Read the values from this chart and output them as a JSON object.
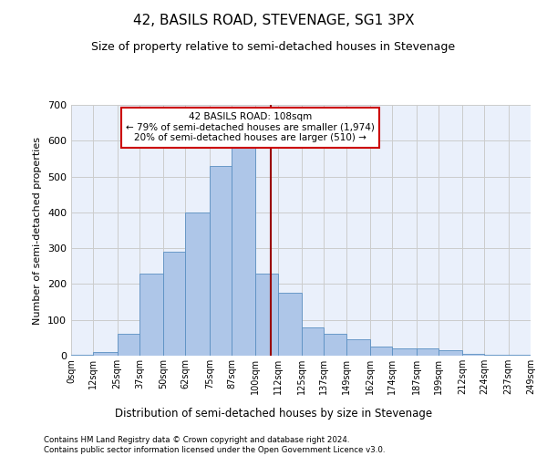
{
  "title": "42, BASILS ROAD, STEVENAGE, SG1 3PX",
  "subtitle": "Size of property relative to semi-detached houses in Stevenage",
  "xlabel": "Distribution of semi-detached houses by size in Stevenage",
  "ylabel": "Number of semi-detached properties",
  "footnote1": "Contains HM Land Registry data © Crown copyright and database right 2024.",
  "footnote2": "Contains public sector information licensed under the Open Government Licence v3.0.",
  "bin_edges": [
    0,
    12,
    25,
    37,
    50,
    62,
    75,
    87,
    100,
    112,
    125,
    137,
    149,
    162,
    174,
    187,
    199,
    212,
    224,
    237,
    249
  ],
  "bar_heights": [
    2,
    10,
    60,
    230,
    290,
    400,
    530,
    580,
    230,
    175,
    80,
    60,
    45,
    25,
    20,
    20,
    15,
    5,
    2,
    2
  ],
  "tick_labels": [
    "0sqm",
    "12sqm",
    "25sqm",
    "37sqm",
    "50sqm",
    "62sqm",
    "75sqm",
    "87sqm",
    "100sqm",
    "112sqm",
    "125sqm",
    "137sqm",
    "149sqm",
    "162sqm",
    "174sqm",
    "187sqm",
    "199sqm",
    "212sqm",
    "224sqm",
    "237sqm",
    "249sqm"
  ],
  "bar_color": "#aec6e8",
  "bar_edge_color": "#5a8fc2",
  "grid_color": "#cccccc",
  "bg_color": "#eaf0fb",
  "red_line_x": 108,
  "red_line_color": "#990000",
  "annotation_text": "42 BASILS ROAD: 108sqm\n← 79% of semi-detached houses are smaller (1,974)\n20% of semi-detached houses are larger (510) →",
  "annotation_box_color": "#cc0000",
  "ylim": [
    0,
    700
  ],
  "yticks": [
    0,
    100,
    200,
    300,
    400,
    500,
    600,
    700
  ],
  "title_fontsize": 11,
  "subtitle_fontsize": 9
}
